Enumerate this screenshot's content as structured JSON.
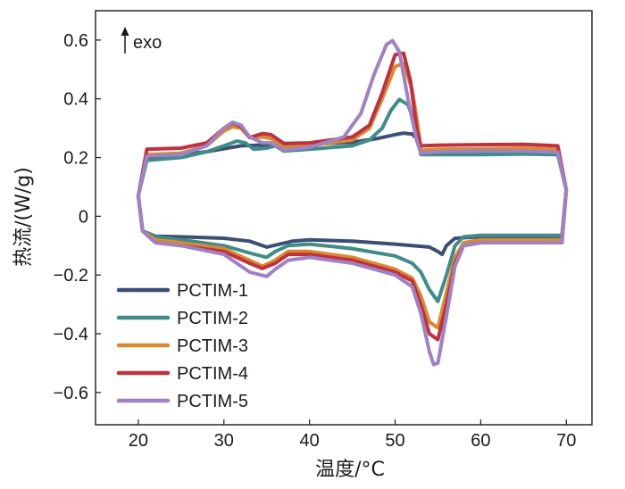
{
  "chart_data": {
    "type": "line",
    "xlabel": "温度/°C",
    "ylabel": "热流/(W/g)",
    "xlim": [
      15,
      73
    ],
    "ylim": [
      -0.71,
      0.7
    ],
    "xticks": [
      20,
      30,
      40,
      50,
      60,
      70
    ],
    "xtick_labels": [
      "20",
      "30",
      "40",
      "50",
      "60",
      "70"
    ],
    "yticks": [
      -0.6,
      -0.4,
      -0.2,
      0,
      0.2,
      0.4,
      0.6
    ],
    "ytick_labels": [
      "−0.6",
      "−0.4",
      "−0.2",
      "0",
      "0.2",
      "0.4",
      "0.6"
    ],
    "annotation": "exo",
    "legend_position": "bottom-left",
    "series": [
      {
        "name": "PCTIM-1",
        "color": "#3b4f73",
        "heating": [
          [
            20,
            0.07
          ],
          [
            21,
            0.2
          ],
          [
            25,
            0.21
          ],
          [
            28,
            0.22
          ],
          [
            30,
            0.23
          ],
          [
            32,
            0.24
          ],
          [
            35,
            0.243
          ],
          [
            40,
            0.245
          ],
          [
            45,
            0.252
          ],
          [
            48,
            0.265
          ],
          [
            50,
            0.278
          ],
          [
            51,
            0.283
          ],
          [
            52,
            0.28
          ],
          [
            52.5,
            0.265
          ],
          [
            53,
            0.22
          ],
          [
            55,
            0.215
          ],
          [
            60,
            0.215
          ],
          [
            65,
            0.215
          ],
          [
            69,
            0.212
          ],
          [
            70,
            0.09
          ]
        ],
        "cooling": [
          [
            70,
            0.09
          ],
          [
            69.5,
            -0.07
          ],
          [
            60,
            -0.07
          ],
          [
            57,
            -0.075
          ],
          [
            56,
            -0.1
          ],
          [
            55.5,
            -0.13
          ],
          [
            55,
            -0.12
          ],
          [
            54,
            -0.105
          ],
          [
            52,
            -0.1
          ],
          [
            50,
            -0.095
          ],
          [
            45,
            -0.085
          ],
          [
            40,
            -0.08
          ],
          [
            38,
            -0.085
          ],
          [
            35,
            -0.105
          ],
          [
            33,
            -0.085
          ],
          [
            30,
            -0.075
          ],
          [
            25,
            -0.07
          ],
          [
            22,
            -0.068
          ],
          [
            20.5,
            -0.05
          ],
          [
            20,
            0.07
          ]
        ]
      },
      {
        "name": "PCTIM-2",
        "color": "#3f8c88",
        "heating": [
          [
            20,
            0.07
          ],
          [
            21,
            0.19
          ],
          [
            25,
            0.2
          ],
          [
            28,
            0.22
          ],
          [
            30,
            0.24
          ],
          [
            31.5,
            0.256
          ],
          [
            32.5,
            0.25
          ],
          [
            33.5,
            0.228
          ],
          [
            35,
            0.232
          ],
          [
            36,
            0.24
          ],
          [
            37,
            0.222
          ],
          [
            40,
            0.228
          ],
          [
            45,
            0.24
          ],
          [
            47,
            0.26
          ],
          [
            48.5,
            0.3
          ],
          [
            49.5,
            0.36
          ],
          [
            50.5,
            0.398
          ],
          [
            51.5,
            0.38
          ],
          [
            52.5,
            0.3
          ],
          [
            53,
            0.21
          ],
          [
            55,
            0.21
          ],
          [
            60,
            0.21
          ],
          [
            65,
            0.212
          ],
          [
            69,
            0.21
          ],
          [
            70,
            0.09
          ]
        ],
        "cooling": [
          [
            70,
            0.09
          ],
          [
            69.5,
            -0.065
          ],
          [
            60,
            -0.065
          ],
          [
            58,
            -0.07
          ],
          [
            57,
            -0.1
          ],
          [
            56,
            -0.2
          ],
          [
            55,
            -0.29
          ],
          [
            54,
            -0.25
          ],
          [
            53,
            -0.19
          ],
          [
            52,
            -0.16
          ],
          [
            50,
            -0.135
          ],
          [
            45,
            -0.11
          ],
          [
            40,
            -0.095
          ],
          [
            37.5,
            -0.1
          ],
          [
            36,
            -0.12
          ],
          [
            35,
            -0.14
          ],
          [
            33,
            -0.125
          ],
          [
            30,
            -0.1
          ],
          [
            25,
            -0.08
          ],
          [
            22,
            -0.07
          ],
          [
            20.5,
            -0.05
          ],
          [
            20,
            0.07
          ]
        ]
      },
      {
        "name": "PCTIM-3",
        "color": "#d98a30",
        "heating": [
          [
            20,
            0.07
          ],
          [
            21,
            0.21
          ],
          [
            25,
            0.215
          ],
          [
            28,
            0.24
          ],
          [
            30,
            0.29
          ],
          [
            31,
            0.305
          ],
          [
            32,
            0.3
          ],
          [
            33,
            0.268
          ],
          [
            34.5,
            0.27
          ],
          [
            35.5,
            0.265
          ],
          [
            37,
            0.235
          ],
          [
            40,
            0.24
          ],
          [
            45,
            0.26
          ],
          [
            47,
            0.3
          ],
          [
            48.5,
            0.4
          ],
          [
            50,
            0.51
          ],
          [
            51,
            0.52
          ],
          [
            52,
            0.43
          ],
          [
            52.7,
            0.3
          ],
          [
            53,
            0.225
          ],
          [
            55,
            0.228
          ],
          [
            60,
            0.23
          ],
          [
            65,
            0.232
          ],
          [
            69,
            0.228
          ],
          [
            70,
            0.09
          ]
        ],
        "cooling": [
          [
            70,
            0.09
          ],
          [
            69.5,
            -0.08
          ],
          [
            60,
            -0.08
          ],
          [
            58,
            -0.09
          ],
          [
            57,
            -0.14
          ],
          [
            56,
            -0.26
          ],
          [
            55,
            -0.38
          ],
          [
            54,
            -0.36
          ],
          [
            53,
            -0.27
          ],
          [
            52,
            -0.21
          ],
          [
            50,
            -0.18
          ],
          [
            45,
            -0.14
          ],
          [
            40,
            -0.12
          ],
          [
            37.5,
            -0.12
          ],
          [
            36,
            -0.15
          ],
          [
            34.5,
            -0.17
          ],
          [
            33,
            -0.15
          ],
          [
            30,
            -0.11
          ],
          [
            25,
            -0.09
          ],
          [
            22,
            -0.08
          ],
          [
            20.5,
            -0.05
          ],
          [
            20,
            0.07
          ]
        ]
      },
      {
        "name": "PCTIM-4",
        "color": "#c0303e",
        "heating": [
          [
            20,
            0.07
          ],
          [
            21,
            0.228
          ],
          [
            25,
            0.232
          ],
          [
            28,
            0.25
          ],
          [
            30,
            0.3
          ],
          [
            31,
            0.318
          ],
          [
            32,
            0.305
          ],
          [
            33,
            0.268
          ],
          [
            34.5,
            0.282
          ],
          [
            35.5,
            0.278
          ],
          [
            37,
            0.248
          ],
          [
            40,
            0.25
          ],
          [
            45,
            0.27
          ],
          [
            47,
            0.31
          ],
          [
            48.5,
            0.42
          ],
          [
            50,
            0.55
          ],
          [
            51,
            0.555
          ],
          [
            51.8,
            0.46
          ],
          [
            52.5,
            0.3
          ],
          [
            53,
            0.24
          ],
          [
            55,
            0.242
          ],
          [
            60,
            0.244
          ],
          [
            65,
            0.245
          ],
          [
            69,
            0.24
          ],
          [
            70,
            0.09
          ]
        ],
        "cooling": [
          [
            70,
            0.09
          ],
          [
            69.5,
            -0.09
          ],
          [
            60,
            -0.09
          ],
          [
            58,
            -0.1
          ],
          [
            57,
            -0.16
          ],
          [
            56,
            -0.3
          ],
          [
            55,
            -0.42
          ],
          [
            54,
            -0.4
          ],
          [
            53,
            -0.3
          ],
          [
            52,
            -0.22
          ],
          [
            50,
            -0.19
          ],
          [
            45,
            -0.15
          ],
          [
            40,
            -0.13
          ],
          [
            37.5,
            -0.13
          ],
          [
            36,
            -0.16
          ],
          [
            34.5,
            -0.178
          ],
          [
            33,
            -0.16
          ],
          [
            30,
            -0.12
          ],
          [
            25,
            -0.1
          ],
          [
            22,
            -0.09
          ],
          [
            20.5,
            -0.05
          ],
          [
            20,
            0.07
          ]
        ]
      },
      {
        "name": "PCTIM-5",
        "color": "#9f82c4",
        "heating": [
          [
            20,
            0.07
          ],
          [
            21,
            0.205
          ],
          [
            25,
            0.21
          ],
          [
            28,
            0.24
          ],
          [
            30,
            0.3
          ],
          [
            31,
            0.32
          ],
          [
            32,
            0.31
          ],
          [
            33,
            0.27
          ],
          [
            34.5,
            0.25
          ],
          [
            35.5,
            0.25
          ],
          [
            37,
            0.225
          ],
          [
            40,
            0.235
          ],
          [
            44,
            0.27
          ],
          [
            46,
            0.35
          ],
          [
            47.5,
            0.48
          ],
          [
            49,
            0.585
          ],
          [
            49.7,
            0.598
          ],
          [
            50.5,
            0.56
          ],
          [
            51.5,
            0.4
          ],
          [
            52.5,
            0.26
          ],
          [
            53,
            0.215
          ],
          [
            55,
            0.22
          ],
          [
            60,
            0.222
          ],
          [
            65,
            0.222
          ],
          [
            69,
            0.218
          ],
          [
            70,
            0.09
          ]
        ],
        "cooling": [
          [
            70,
            0.09
          ],
          [
            69.5,
            -0.09
          ],
          [
            60,
            -0.09
          ],
          [
            58,
            -0.1
          ],
          [
            57,
            -0.17
          ],
          [
            56,
            -0.34
          ],
          [
            55,
            -0.5
          ],
          [
            54.5,
            -0.505
          ],
          [
            54,
            -0.46
          ],
          [
            53,
            -0.33
          ],
          [
            52,
            -0.24
          ],
          [
            50,
            -0.2
          ],
          [
            45,
            -0.16
          ],
          [
            40,
            -0.14
          ],
          [
            37.5,
            -0.15
          ],
          [
            36,
            -0.18
          ],
          [
            35,
            -0.205
          ],
          [
            33,
            -0.19
          ],
          [
            30,
            -0.13
          ],
          [
            25,
            -0.1
          ],
          [
            22,
            -0.09
          ],
          [
            20.5,
            -0.05
          ],
          [
            20,
            0.07
          ]
        ]
      }
    ]
  }
}
